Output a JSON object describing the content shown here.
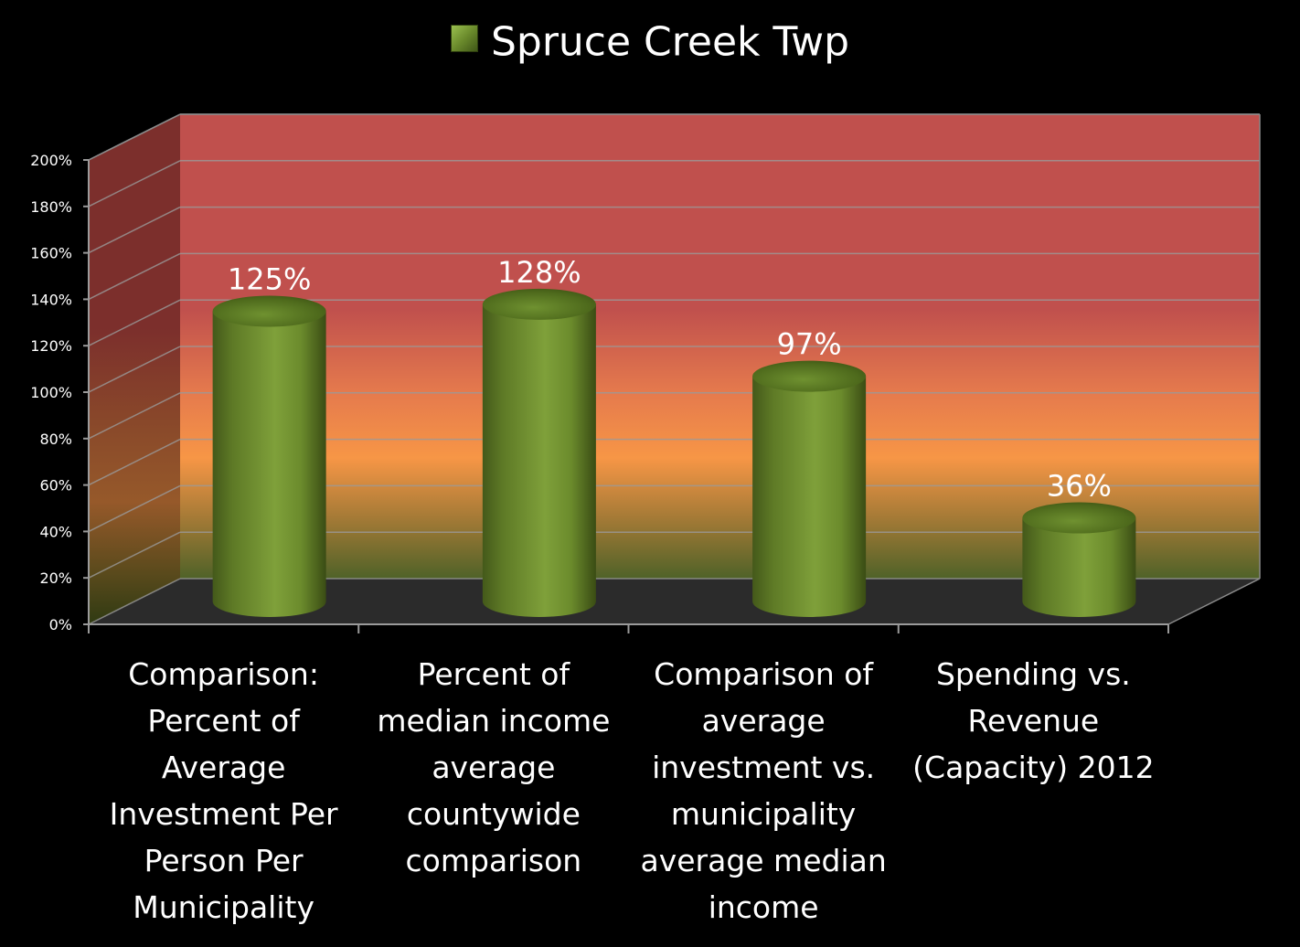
{
  "chart_data": {
    "type": "bar",
    "style": "3d-cylinder",
    "categories": [
      "Comparison: Percent of Average Investment Per Person Per Municipality",
      "Percent of median income average countywide comparison",
      "Comparison of average investment vs. municipality average median income",
      "Spending vs. Revenue (Capacity) 2012"
    ],
    "series": [
      {
        "name": "Spruce Creek Twp",
        "values": [
          125,
          128,
          97,
          36
        ]
      }
    ],
    "data_labels": [
      "125%",
      "128%",
      "97%",
      "36%"
    ],
    "y_ticks": [
      "0%",
      "20%",
      "40%",
      "60%",
      "80%",
      "100%",
      "120%",
      "140%",
      "160%",
      "180%",
      "200%"
    ],
    "ylim": [
      0,
      200
    ],
    "legend_position": "top",
    "grid": true,
    "colors": {
      "bar": "#6b8b2c",
      "background_top": "#c0504d",
      "background_middle": "#f79646",
      "background_bottom": "#4f6228",
      "floor": "#2b2b2b"
    }
  },
  "legend": {
    "label": "Spruce Creek Twp"
  }
}
